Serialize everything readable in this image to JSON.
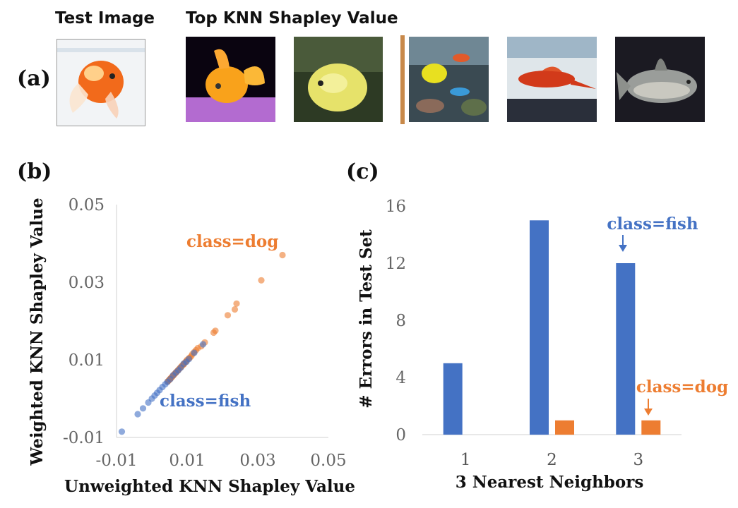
{
  "panel_a": {
    "label": "(a)",
    "test_header": "Test Image",
    "top_header": "Top KNN Shapley Value",
    "images": [
      {
        "name": "test-goldfish-image",
        "subject": "goldfish in bowl"
      },
      {
        "name": "neighbor-orange-fish-image",
        "subject": "orange fish"
      },
      {
        "name": "neighbor-yellow-boxfish-image",
        "subject": "yellow boxfish"
      },
      {
        "name": "neighbor-reef-fish-image",
        "subject": "reef fish"
      },
      {
        "name": "neighbor-red-swordtail-image",
        "subject": "red swordtail"
      },
      {
        "name": "neighbor-grey-fish-image",
        "subject": "grey fish"
      }
    ]
  },
  "panel_b": {
    "label": "(b)"
  },
  "panel_c": {
    "label": "(c)"
  },
  "chart_data": [
    {
      "type": "scatter",
      "xlabel": "Unweighted KNN Shapley Value",
      "ylabel": "Weighted KNN Shapley Value",
      "xlim": [
        -0.01,
        0.05
      ],
      "ylim": [
        -0.01,
        0.05
      ],
      "xticks": [
        "-0.01",
        "0.01",
        "0.03",
        "0.05"
      ],
      "yticks": [
        "-0.01",
        "0.01",
        "0.03",
        "0.05"
      ],
      "annotations": [
        {
          "text": "class=dog",
          "color": "#ED7D31"
        },
        {
          "text": "class=fish",
          "color": "#4472C4"
        }
      ],
      "series": [
        {
          "name": "class=dog",
          "color": "#ED7D31",
          "points": [
            [
              0.037,
              0.037
            ],
            [
              0.031,
              0.0305
            ],
            [
              0.024,
              0.0245
            ],
            [
              0.0235,
              0.023
            ],
            [
              0.0215,
              0.0215
            ],
            [
              0.018,
              0.0175
            ],
            [
              0.0175,
              0.017
            ],
            [
              0.015,
              0.0145
            ],
            [
              0.014,
              0.0135
            ],
            [
              0.013,
              0.013
            ],
            [
              0.0125,
              0.0125
            ],
            [
              0.012,
              0.012
            ],
            [
              0.0115,
              0.0115
            ],
            [
              0.0112,
              0.011
            ],
            [
              0.0108,
              0.0106
            ],
            [
              0.0105,
              0.0104
            ],
            [
              0.01,
              0.01
            ],
            [
              0.0098,
              0.0097
            ],
            [
              0.0095,
              0.0094
            ],
            [
              0.0092,
              0.0091
            ],
            [
              0.009,
              0.0088
            ],
            [
              0.0088,
              0.0087
            ],
            [
              0.0085,
              0.0084
            ],
            [
              0.0083,
              0.0082
            ],
            [
              0.008,
              0.0079
            ],
            [
              0.0078,
              0.0077
            ],
            [
              0.0075,
              0.0074
            ],
            [
              0.0073,
              0.0072
            ],
            [
              0.0071,
              0.007
            ],
            [
              0.0069,
              0.0068
            ],
            [
              0.0067,
              0.0066
            ],
            [
              0.0065,
              0.0064
            ],
            [
              0.0063,
              0.0062
            ],
            [
              0.0061,
              0.006
            ],
            [
              0.0059,
              0.0058
            ],
            [
              0.0057,
              0.0056
            ],
            [
              0.0055,
              0.0054
            ],
            [
              0.0053,
              0.0052
            ],
            [
              0.0051,
              0.005
            ],
            [
              0.0049,
              0.0048
            ],
            [
              0.0047,
              0.0046
            ],
            [
              0.0045,
              0.0044
            ]
          ]
        },
        {
          "name": "class=fish",
          "color": "#4472C4",
          "points": [
            [
              0.0145,
              0.014
            ],
            [
              0.012,
              0.0118
            ],
            [
              0.0105,
              0.0102
            ],
            [
              0.0098,
              0.0095
            ],
            [
              0.009,
              0.009
            ],
            [
              0.0082,
              0.008
            ],
            [
              0.0075,
              0.0073
            ],
            [
              0.0068,
              0.0067
            ],
            [
              0.006,
              0.006
            ],
            [
              0.0052,
              0.005
            ],
            [
              0.0044,
              0.0043
            ],
            [
              0.0038,
              0.0037
            ],
            [
              0.003,
              0.003
            ],
            [
              0.0022,
              0.0022
            ],
            [
              0.0015,
              0.0015
            ],
            [
              0.0008,
              0.0008
            ],
            [
              0.0,
              0.0
            ],
            [
              -0.001,
              -0.001
            ],
            [
              -0.0025,
              -0.0025
            ],
            [
              -0.004,
              -0.004
            ],
            [
              -0.0085,
              -0.0085
            ]
          ]
        }
      ]
    },
    {
      "type": "bar",
      "xlabel": "3 Nearest Neighbors",
      "ylabel": "# Errors in Test Set",
      "categories": [
        "1",
        "2",
        "3"
      ],
      "ylim": [
        0,
        16
      ],
      "yticks": [
        "0",
        "4",
        "8",
        "12",
        "16"
      ],
      "annotations": [
        {
          "text": "class=fish",
          "color": "#4472C4",
          "category": "3",
          "series": 0
        },
        {
          "text": "class=dog",
          "color": "#ED7D31",
          "category": "3",
          "series": 1
        }
      ],
      "series": [
        {
          "color": "#4472C4",
          "values": [
            5,
            15,
            12
          ]
        },
        {
          "color": "#ED7D31",
          "values": [
            0,
            1,
            1
          ]
        }
      ]
    }
  ]
}
